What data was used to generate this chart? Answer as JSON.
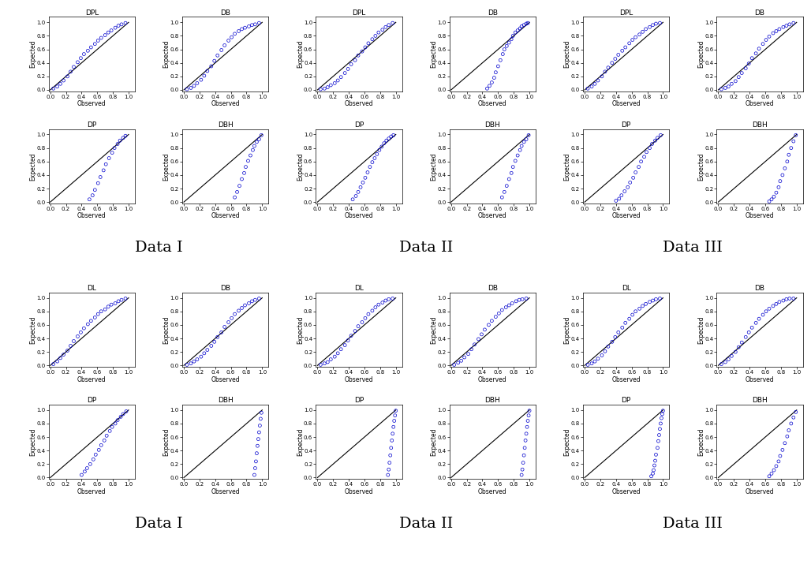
{
  "background_color": "#ffffff",
  "point_color": "#0000CD",
  "point_size": 8,
  "point_marker": "o",
  "point_facecolor": "none",
  "line_color": "black",
  "xlabel": "Observed",
  "ylabel": "Expected",
  "tick_fontsize": 5,
  "label_fontsize": 5.5,
  "title_fontsize": 6.5,
  "section_label_fontsize": 14,
  "top_section": {
    "dataset_labels": [
      "Data I",
      "Data II",
      "Data III"
    ],
    "row1_titles": [
      "DPL",
      "DB",
      "DPL",
      "DB",
      "DPL",
      "DB"
    ],
    "row2_titles": [
      "DP",
      "DBH",
      "DP",
      "DBH",
      "DP",
      "DBH"
    ],
    "plots": {
      "r0c0": {
        "obs": [
          0.04,
          0.09,
          0.13,
          0.17,
          0.22,
          0.26,
          0.3,
          0.35,
          0.39,
          0.43,
          0.48,
          0.52,
          0.57,
          0.61,
          0.65,
          0.7,
          0.74,
          0.78,
          0.83,
          0.87,
          0.91,
          0.96
        ],
        "exp": [
          0.02,
          0.05,
          0.09,
          0.14,
          0.2,
          0.27,
          0.34,
          0.41,
          0.47,
          0.53,
          0.58,
          0.63,
          0.68,
          0.73,
          0.77,
          0.81,
          0.85,
          0.88,
          0.92,
          0.95,
          0.97,
          0.99
        ]
      },
      "r0c1": {
        "obs": [
          0.04,
          0.09,
          0.13,
          0.17,
          0.22,
          0.26,
          0.3,
          0.35,
          0.39,
          0.43,
          0.48,
          0.52,
          0.57,
          0.61,
          0.65,
          0.7,
          0.74,
          0.78,
          0.83,
          0.87,
          0.91,
          0.96
        ],
        "exp": [
          0.01,
          0.03,
          0.06,
          0.1,
          0.15,
          0.21,
          0.28,
          0.35,
          0.43,
          0.51,
          0.59,
          0.66,
          0.73,
          0.78,
          0.83,
          0.87,
          0.9,
          0.92,
          0.94,
          0.96,
          0.97,
          0.99
        ]
      },
      "r0c2": {
        "obs": [
          0.04,
          0.09,
          0.13,
          0.17,
          0.22,
          0.26,
          0.3,
          0.35,
          0.39,
          0.43,
          0.48,
          0.52,
          0.57,
          0.61,
          0.65,
          0.7,
          0.74,
          0.78,
          0.83,
          0.87,
          0.91,
          0.96
        ],
        "exp": [
          0.01,
          0.02,
          0.04,
          0.07,
          0.1,
          0.14,
          0.19,
          0.25,
          0.31,
          0.38,
          0.44,
          0.51,
          0.57,
          0.63,
          0.69,
          0.75,
          0.8,
          0.85,
          0.89,
          0.93,
          0.96,
          0.99
        ]
      },
      "r0c3": {
        "obs": [
          0.46,
          0.49,
          0.52,
          0.55,
          0.57,
          0.6,
          0.63,
          0.66,
          0.68,
          0.71,
          0.74,
          0.77,
          0.79,
          0.82,
          0.85,
          0.88,
          0.9,
          0.93,
          0.96,
          0.98
        ],
        "exp": [
          0.02,
          0.06,
          0.11,
          0.18,
          0.26,
          0.35,
          0.44,
          0.53,
          0.6,
          0.65,
          0.7,
          0.75,
          0.8,
          0.85,
          0.88,
          0.91,
          0.94,
          0.96,
          0.98,
          0.99
        ]
      },
      "r0c4": {
        "obs": [
          0.04,
          0.09,
          0.13,
          0.17,
          0.22,
          0.26,
          0.3,
          0.35,
          0.39,
          0.43,
          0.48,
          0.52,
          0.57,
          0.61,
          0.65,
          0.7,
          0.74,
          0.78,
          0.83,
          0.87,
          0.91,
          0.96
        ],
        "exp": [
          0.02,
          0.05,
          0.09,
          0.14,
          0.2,
          0.27,
          0.33,
          0.4,
          0.46,
          0.52,
          0.58,
          0.63,
          0.69,
          0.74,
          0.78,
          0.82,
          0.86,
          0.9,
          0.93,
          0.96,
          0.98,
          0.99
        ]
      },
      "r0c5": {
        "obs": [
          0.04,
          0.09,
          0.13,
          0.17,
          0.22,
          0.26,
          0.3,
          0.35,
          0.39,
          0.43,
          0.48,
          0.52,
          0.57,
          0.61,
          0.65,
          0.7,
          0.74,
          0.78,
          0.83,
          0.87,
          0.91,
          0.96
        ],
        "exp": [
          0.01,
          0.03,
          0.05,
          0.09,
          0.13,
          0.19,
          0.25,
          0.32,
          0.39,
          0.47,
          0.54,
          0.61,
          0.68,
          0.74,
          0.79,
          0.84,
          0.87,
          0.9,
          0.93,
          0.95,
          0.97,
          0.99
        ]
      },
      "r1c0": {
        "obs": [
          0.5,
          0.54,
          0.57,
          0.61,
          0.64,
          0.68,
          0.71,
          0.75,
          0.79,
          0.82,
          0.86,
          0.89,
          0.93,
          0.96
        ],
        "exp": [
          0.04,
          0.1,
          0.18,
          0.28,
          0.37,
          0.47,
          0.56,
          0.65,
          0.73,
          0.8,
          0.86,
          0.91,
          0.95,
          0.98
        ]
      },
      "r1c1": {
        "obs": [
          0.65,
          0.68,
          0.71,
          0.74,
          0.77,
          0.79,
          0.82,
          0.85,
          0.88,
          0.9,
          0.93,
          0.96,
          0.99
        ],
        "exp": [
          0.07,
          0.15,
          0.24,
          0.34,
          0.43,
          0.52,
          0.61,
          0.69,
          0.77,
          0.83,
          0.89,
          0.93,
          0.99
        ]
      },
      "r1c2": {
        "obs": [
          0.45,
          0.49,
          0.52,
          0.55,
          0.58,
          0.61,
          0.64,
          0.67,
          0.7,
          0.73,
          0.76,
          0.79,
          0.82,
          0.85,
          0.88,
          0.91,
          0.94,
          0.97
        ],
        "exp": [
          0.04,
          0.09,
          0.15,
          0.22,
          0.29,
          0.36,
          0.44,
          0.52,
          0.59,
          0.65,
          0.71,
          0.77,
          0.82,
          0.87,
          0.91,
          0.94,
          0.97,
          0.99
        ]
      },
      "r1c3": {
        "obs": [
          0.65,
          0.68,
          0.71,
          0.74,
          0.77,
          0.79,
          0.82,
          0.85,
          0.88,
          0.9,
          0.93,
          0.96,
          0.99
        ],
        "exp": [
          0.07,
          0.15,
          0.24,
          0.34,
          0.43,
          0.52,
          0.61,
          0.69,
          0.77,
          0.83,
          0.89,
          0.93,
          0.99
        ]
      },
      "r1c4": {
        "obs": [
          0.4,
          0.44,
          0.47,
          0.51,
          0.55,
          0.58,
          0.62,
          0.65,
          0.69,
          0.72,
          0.76,
          0.79,
          0.83,
          0.86,
          0.9,
          0.93,
          0.97
        ],
        "exp": [
          0.02,
          0.05,
          0.1,
          0.16,
          0.22,
          0.29,
          0.36,
          0.44,
          0.52,
          0.6,
          0.67,
          0.74,
          0.8,
          0.86,
          0.91,
          0.95,
          0.99
        ]
      },
      "r1c5": {
        "obs": [
          0.65,
          0.68,
          0.71,
          0.74,
          0.77,
          0.79,
          0.82,
          0.85,
          0.88,
          0.9,
          0.93,
          0.96,
          0.99
        ],
        "exp": [
          0.01,
          0.04,
          0.08,
          0.14,
          0.22,
          0.31,
          0.4,
          0.5,
          0.6,
          0.7,
          0.8,
          0.9,
          0.99
        ]
      }
    }
  },
  "bottom_section": {
    "dataset_labels": [
      "Data I",
      "Data II",
      "Data III"
    ],
    "row1_titles": [
      "DL",
      "DB",
      "DL",
      "DB",
      "DL",
      "DB"
    ],
    "row2_titles": [
      "DP",
      "DBH",
      "DP",
      "DBH",
      "DP",
      "DBH"
    ],
    "plots": {
      "r0c0": {
        "obs": [
          0.04,
          0.09,
          0.13,
          0.17,
          0.22,
          0.26,
          0.3,
          0.35,
          0.39,
          0.43,
          0.48,
          0.52,
          0.57,
          0.61,
          0.65,
          0.7,
          0.74,
          0.78,
          0.83,
          0.87,
          0.91,
          0.96
        ],
        "exp": [
          0.02,
          0.06,
          0.11,
          0.16,
          0.22,
          0.29,
          0.36,
          0.43,
          0.49,
          0.55,
          0.61,
          0.66,
          0.71,
          0.76,
          0.8,
          0.83,
          0.87,
          0.9,
          0.92,
          0.95,
          0.97,
          0.99
        ]
      },
      "r0c1": {
        "obs": [
          0.04,
          0.09,
          0.13,
          0.17,
          0.22,
          0.26,
          0.3,
          0.35,
          0.39,
          0.43,
          0.48,
          0.52,
          0.57,
          0.61,
          0.65,
          0.7,
          0.74,
          0.78,
          0.83,
          0.87,
          0.91,
          0.96
        ],
        "exp": [
          0.01,
          0.03,
          0.06,
          0.09,
          0.13,
          0.18,
          0.23,
          0.29,
          0.35,
          0.42,
          0.49,
          0.57,
          0.64,
          0.7,
          0.76,
          0.81,
          0.85,
          0.89,
          0.92,
          0.95,
          0.97,
          0.99
        ]
      },
      "r0c2": {
        "obs": [
          0.04,
          0.09,
          0.13,
          0.17,
          0.22,
          0.26,
          0.3,
          0.35,
          0.39,
          0.43,
          0.48,
          0.52,
          0.57,
          0.61,
          0.65,
          0.7,
          0.74,
          0.78,
          0.83,
          0.87,
          0.91,
          0.96
        ],
        "exp": [
          0.01,
          0.03,
          0.05,
          0.09,
          0.13,
          0.18,
          0.24,
          0.3,
          0.37,
          0.44,
          0.51,
          0.58,
          0.64,
          0.7,
          0.76,
          0.81,
          0.86,
          0.9,
          0.93,
          0.96,
          0.98,
          0.99
        ]
      },
      "r0c3": {
        "obs": [
          0.04,
          0.09,
          0.13,
          0.17,
          0.22,
          0.26,
          0.3,
          0.35,
          0.39,
          0.43,
          0.48,
          0.52,
          0.57,
          0.61,
          0.65,
          0.7,
          0.74,
          0.78,
          0.83,
          0.87,
          0.91,
          0.96
        ],
        "exp": [
          0.01,
          0.04,
          0.07,
          0.12,
          0.17,
          0.24,
          0.31,
          0.39,
          0.46,
          0.53,
          0.6,
          0.66,
          0.72,
          0.77,
          0.82,
          0.86,
          0.89,
          0.92,
          0.95,
          0.97,
          0.98,
          0.99
        ]
      },
      "r0c4": {
        "obs": [
          0.04,
          0.09,
          0.13,
          0.17,
          0.22,
          0.26,
          0.3,
          0.35,
          0.39,
          0.43,
          0.48,
          0.52,
          0.57,
          0.61,
          0.65,
          0.7,
          0.74,
          0.78,
          0.83,
          0.87,
          0.91,
          0.96
        ],
        "exp": [
          0.01,
          0.03,
          0.06,
          0.1,
          0.15,
          0.21,
          0.28,
          0.35,
          0.42,
          0.49,
          0.56,
          0.63,
          0.69,
          0.75,
          0.8,
          0.84,
          0.88,
          0.91,
          0.94,
          0.96,
          0.98,
          0.99
        ]
      },
      "r0c5": {
        "obs": [
          0.04,
          0.09,
          0.13,
          0.17,
          0.22,
          0.26,
          0.3,
          0.35,
          0.39,
          0.43,
          0.48,
          0.52,
          0.57,
          0.61,
          0.65,
          0.7,
          0.74,
          0.78,
          0.83,
          0.87,
          0.91,
          0.96
        ],
        "exp": [
          0.02,
          0.05,
          0.09,
          0.14,
          0.2,
          0.27,
          0.34,
          0.42,
          0.49,
          0.56,
          0.63,
          0.69,
          0.75,
          0.8,
          0.84,
          0.88,
          0.91,
          0.94,
          0.96,
          0.98,
          0.99,
          0.99
        ]
      },
      "r1c0": {
        "obs": [
          0.4,
          0.44,
          0.47,
          0.51,
          0.55,
          0.58,
          0.62,
          0.65,
          0.69,
          0.72,
          0.76,
          0.79,
          0.83,
          0.86,
          0.9,
          0.93,
          0.97
        ],
        "exp": [
          0.04,
          0.09,
          0.14,
          0.2,
          0.27,
          0.34,
          0.41,
          0.48,
          0.55,
          0.62,
          0.69,
          0.75,
          0.8,
          0.85,
          0.9,
          0.94,
          0.98
        ]
      },
      "r1c1": {
        "obs": [
          0.9,
          0.91,
          0.92,
          0.93,
          0.94,
          0.95,
          0.96,
          0.97,
          0.98,
          0.99
        ],
        "exp": [
          0.04,
          0.14,
          0.24,
          0.36,
          0.47,
          0.57,
          0.67,
          0.77,
          0.87,
          0.96
        ]
      },
      "r1c2": {
        "obs": [
          0.9,
          0.91,
          0.92,
          0.93,
          0.94,
          0.95,
          0.96,
          0.97,
          0.98,
          0.99,
          1.0
        ],
        "exp": [
          0.04,
          0.12,
          0.22,
          0.33,
          0.44,
          0.55,
          0.65,
          0.75,
          0.84,
          0.92,
          0.99
        ]
      },
      "r1c3": {
        "obs": [
          0.9,
          0.91,
          0.92,
          0.93,
          0.94,
          0.95,
          0.96,
          0.97,
          0.98,
          0.99,
          1.0
        ],
        "exp": [
          0.04,
          0.12,
          0.22,
          0.33,
          0.44,
          0.55,
          0.65,
          0.75,
          0.84,
          0.92,
          0.99
        ]
      },
      "r1c4": {
        "obs": [
          0.85,
          0.87,
          0.88,
          0.89,
          0.9,
          0.91,
          0.93,
          0.94,
          0.95,
          0.96,
          0.97,
          0.98,
          0.99,
          1.0
        ],
        "exp": [
          0.02,
          0.06,
          0.11,
          0.18,
          0.25,
          0.34,
          0.44,
          0.54,
          0.63,
          0.72,
          0.8,
          0.88,
          0.94,
          0.99
        ]
      },
      "r1c5": {
        "obs": [
          0.65,
          0.68,
          0.71,
          0.74,
          0.77,
          0.79,
          0.82,
          0.85,
          0.88,
          0.9,
          0.93,
          0.96,
          0.99
        ],
        "exp": [
          0.02,
          0.06,
          0.11,
          0.17,
          0.24,
          0.32,
          0.41,
          0.51,
          0.61,
          0.7,
          0.8,
          0.89,
          0.97
        ]
      }
    }
  }
}
